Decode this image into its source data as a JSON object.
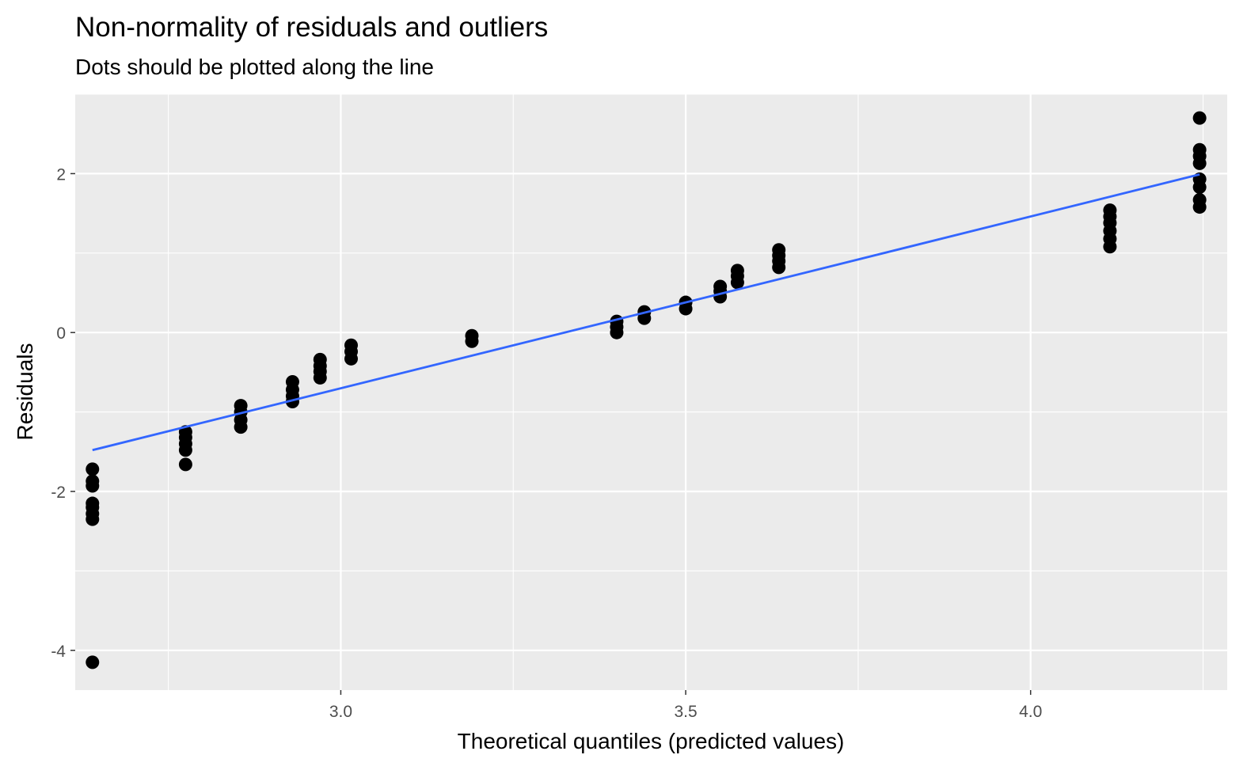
{
  "chart_data": {
    "type": "scatter",
    "title": "Non-normality of residuals and outliers",
    "subtitle": "Dots should be plotted along the line",
    "xlabel": "Theoretical quantiles (predicted values)",
    "ylabel": "Residuals",
    "xlim": [
      2.615,
      4.285
    ],
    "ylim": [
      -4.5,
      3.0
    ],
    "x_ticks": [
      3.0,
      3.5,
      4.0
    ],
    "x_tick_labels": [
      "3.0",
      "3.5",
      "4.0"
    ],
    "y_ticks": [
      -4,
      -2,
      0,
      2
    ],
    "y_tick_labels": [
      "-4",
      "-2",
      "0",
      "2"
    ],
    "grid": true,
    "colors": {
      "panel": "#ebebeb",
      "grid": "#ffffff",
      "points": "#000000",
      "line": "#3366ff"
    },
    "points": [
      {
        "x": 2.64,
        "y": -4.15
      },
      {
        "x": 2.64,
        "y": -2.35
      },
      {
        "x": 2.64,
        "y": -2.28
      },
      {
        "x": 2.64,
        "y": -2.2
      },
      {
        "x": 2.64,
        "y": -2.15
      },
      {
        "x": 2.64,
        "y": -1.93
      },
      {
        "x": 2.64,
        "y": -1.87
      },
      {
        "x": 2.64,
        "y": -1.72
      },
      {
        "x": 2.775,
        "y": -1.66
      },
      {
        "x": 2.775,
        "y": -1.48
      },
      {
        "x": 2.775,
        "y": -1.4
      },
      {
        "x": 2.775,
        "y": -1.32
      },
      {
        "x": 2.775,
        "y": -1.25
      },
      {
        "x": 2.855,
        "y": -1.19
      },
      {
        "x": 2.855,
        "y": -1.1
      },
      {
        "x": 2.855,
        "y": -1.0
      },
      {
        "x": 2.855,
        "y": -0.92
      },
      {
        "x": 2.93,
        "y": -0.87
      },
      {
        "x": 2.93,
        "y": -0.8
      },
      {
        "x": 2.93,
        "y": -0.72
      },
      {
        "x": 2.93,
        "y": -0.62
      },
      {
        "x": 2.97,
        "y": -0.57
      },
      {
        "x": 2.97,
        "y": -0.49
      },
      {
        "x": 2.97,
        "y": -0.42
      },
      {
        "x": 2.97,
        "y": -0.34
      },
      {
        "x": 3.015,
        "y": -0.33
      },
      {
        "x": 3.015,
        "y": -0.24
      },
      {
        "x": 3.015,
        "y": -0.16
      },
      {
        "x": 3.19,
        "y": -0.11
      },
      {
        "x": 3.19,
        "y": -0.04
      },
      {
        "x": 3.4,
        "y": 0.0
      },
      {
        "x": 3.4,
        "y": 0.07
      },
      {
        "x": 3.4,
        "y": 0.14
      },
      {
        "x": 3.44,
        "y": 0.18
      },
      {
        "x": 3.44,
        "y": 0.26
      },
      {
        "x": 3.5,
        "y": 0.3
      },
      {
        "x": 3.5,
        "y": 0.38
      },
      {
        "x": 3.55,
        "y": 0.45
      },
      {
        "x": 3.55,
        "y": 0.52
      },
      {
        "x": 3.55,
        "y": 0.58
      },
      {
        "x": 3.575,
        "y": 0.63
      },
      {
        "x": 3.575,
        "y": 0.71
      },
      {
        "x": 3.575,
        "y": 0.78
      },
      {
        "x": 3.635,
        "y": 0.82
      },
      {
        "x": 3.635,
        "y": 0.9
      },
      {
        "x": 3.635,
        "y": 0.97
      },
      {
        "x": 3.635,
        "y": 1.04
      },
      {
        "x": 4.115,
        "y": 1.08
      },
      {
        "x": 4.115,
        "y": 1.18
      },
      {
        "x": 4.115,
        "y": 1.28
      },
      {
        "x": 4.115,
        "y": 1.38
      },
      {
        "x": 4.115,
        "y": 1.46
      },
      {
        "x": 4.115,
        "y": 1.54
      },
      {
        "x": 4.245,
        "y": 1.58
      },
      {
        "x": 4.245,
        "y": 1.67
      },
      {
        "x": 4.245,
        "y": 1.83
      },
      {
        "x": 4.245,
        "y": 1.93
      },
      {
        "x": 4.245,
        "y": 2.13
      },
      {
        "x": 4.245,
        "y": 2.22
      },
      {
        "x": 4.245,
        "y": 2.3
      },
      {
        "x": 4.245,
        "y": 2.7
      }
    ],
    "line": [
      {
        "x": 2.64,
        "y": -1.48
      },
      {
        "x": 4.245,
        "y": 1.99
      }
    ]
  }
}
